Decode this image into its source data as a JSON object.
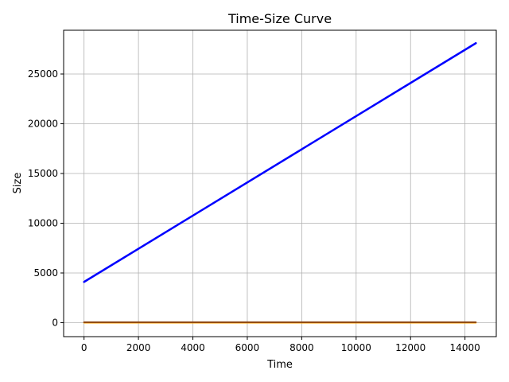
{
  "chart_data": {
    "type": "line",
    "title": "Time-Size Curve",
    "xlabel": "Time",
    "ylabel": "Size",
    "xlim": [
      -750,
      15150
    ],
    "ylim": [
      -1400,
      29400
    ],
    "xticks": [
      0,
      2000,
      4000,
      6000,
      8000,
      10000,
      12000,
      14000
    ],
    "yticks": [
      0,
      5000,
      10000,
      15000,
      20000,
      25000
    ],
    "grid": true,
    "legend": "none",
    "series": [
      {
        "color": "#0000ff",
        "x": [
          0,
          14400
        ],
        "y": [
          4100,
          28100
        ]
      },
      {
        "color": "#8b4513",
        "x": [
          0,
          14400
        ],
        "y": [
          50,
          50
        ]
      },
      {
        "color": "#ffa500",
        "x": [
          0,
          14400
        ],
        "y": [
          0,
          0
        ]
      }
    ]
  }
}
